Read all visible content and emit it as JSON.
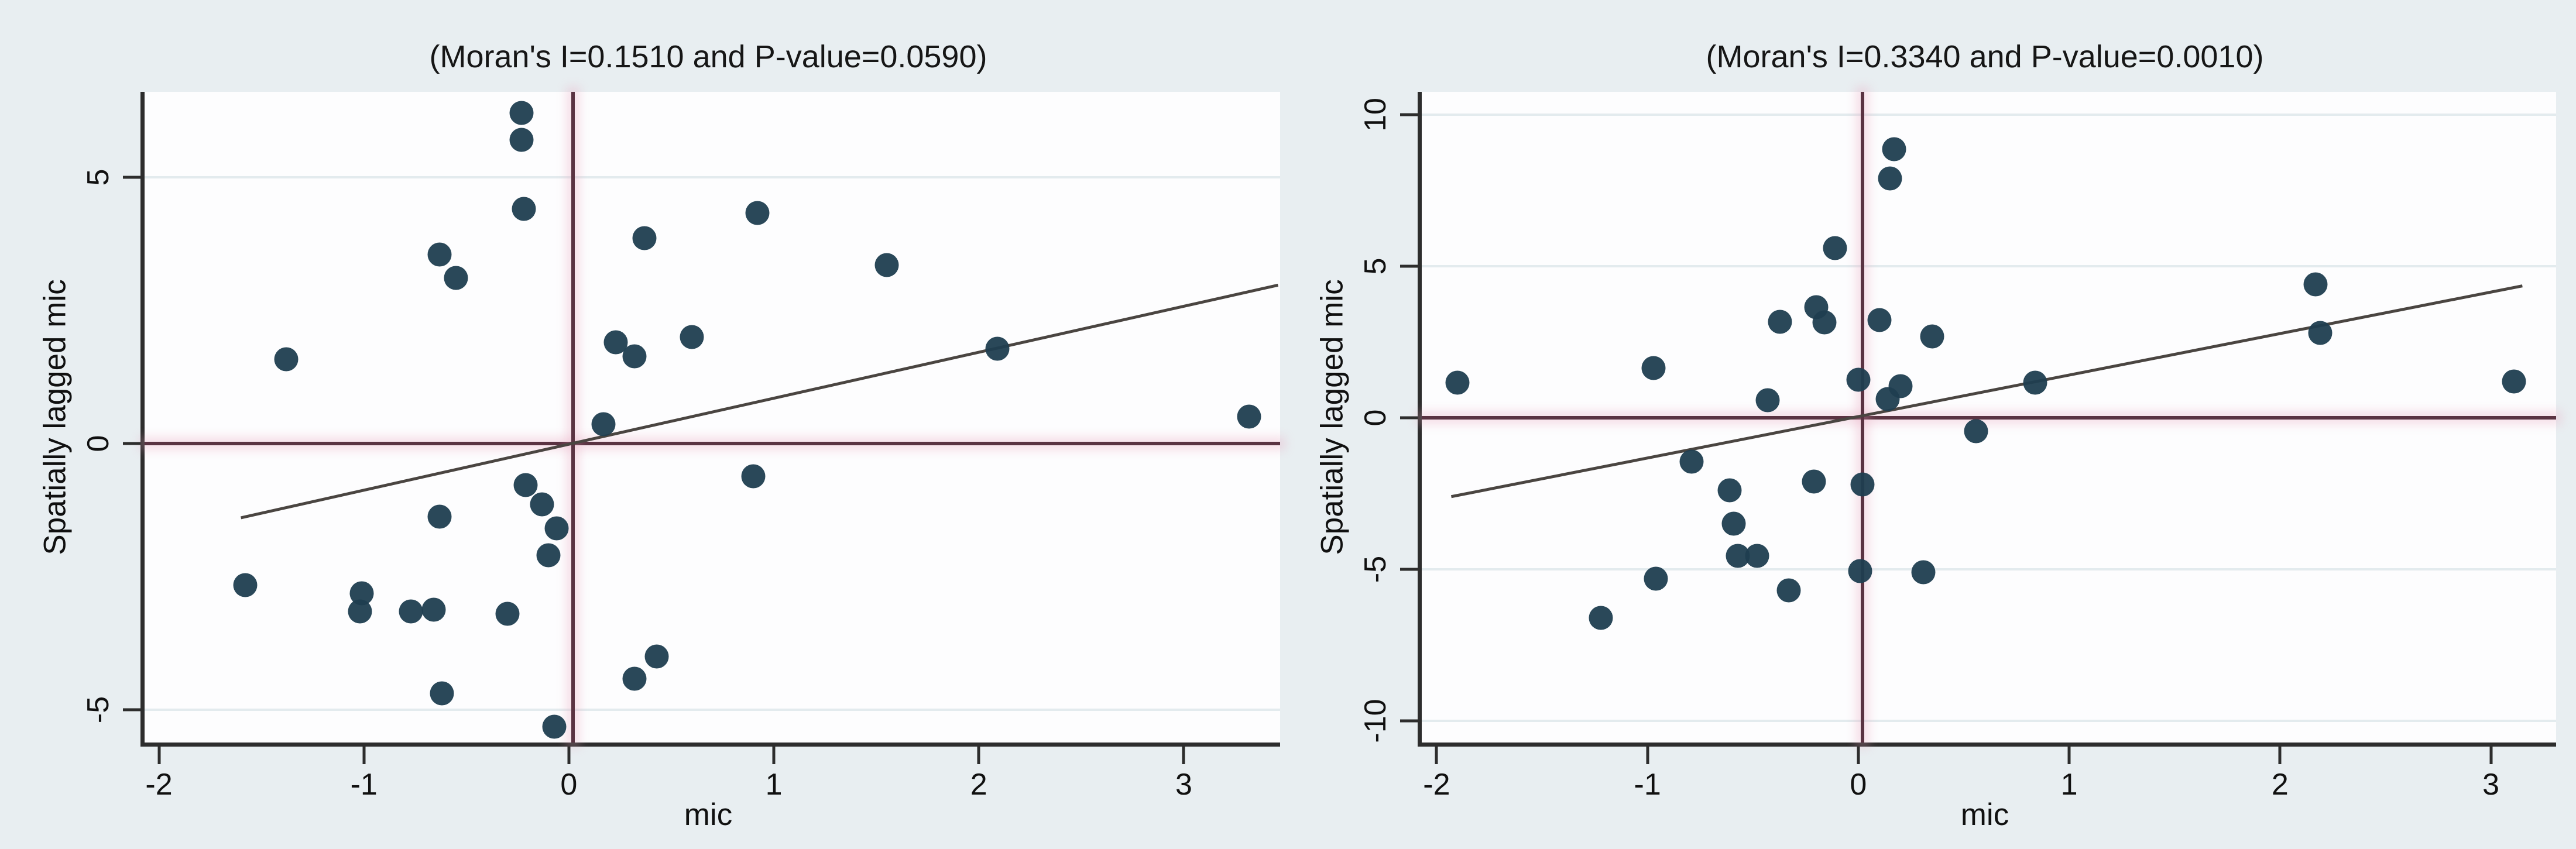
{
  "figure": {
    "description": "Two Moran scatter plots of variable mic with spatially lagged mic",
    "background_color": "#e8eef1"
  },
  "style": {
    "point_color": "#1f3e50",
    "reference_line_color": "#5a3342",
    "fit_line_color": "#4a4541",
    "axis_color": "#2d2d2d",
    "grid_color": "#e3ebee",
    "plot_background": "#fdfdfe",
    "text_color": "#101010"
  },
  "chart_data": [
    {
      "type": "scatter",
      "title": "(Moran's I=0.1510 and P-value=0.0590)",
      "moran_i": "0.1510",
      "p_value": "0.0590",
      "xlabel": "mic",
      "ylabel": "Spatially lagged mic",
      "xlim": [
        -2.09,
        3.45
      ],
      "ylim": [
        -5.62,
        6.6
      ],
      "xticks": [
        -2,
        -1,
        0,
        1,
        2,
        3
      ],
      "yticks": [
        -5,
        0,
        5
      ],
      "grid": "horizontal-only",
      "legend": "none",
      "ref_vline_x": 0,
      "ref_hline_y": 0,
      "fit_line": {
        "x1": -1.62,
        "y1": -1.4,
        "x2": 3.44,
        "y2": 2.97
      },
      "points": [
        [
          -0.25,
          6.2
        ],
        [
          -0.25,
          5.7
        ],
        [
          -0.24,
          4.4
        ],
        [
          -0.65,
          3.55
        ],
        [
          -0.57,
          3.1
        ],
        [
          -1.4,
          1.58
        ],
        [
          0.35,
          3.85
        ],
        [
          0.9,
          4.32
        ],
        [
          1.53,
          3.35
        ],
        [
          0.21,
          1.9
        ],
        [
          0.3,
          1.63
        ],
        [
          0.58,
          2.0
        ],
        [
          2.07,
          1.78
        ],
        [
          3.3,
          0.5
        ],
        [
          0.15,
          0.36
        ],
        [
          0.88,
          -0.62
        ],
        [
          -0.23,
          -0.78
        ],
        [
          -0.15,
          -1.15
        ],
        [
          -0.08,
          -1.6
        ],
        [
          -0.12,
          -2.1
        ],
        [
          -0.65,
          -1.38
        ],
        [
          -1.6,
          -2.66
        ],
        [
          -1.03,
          -2.82
        ],
        [
          -1.04,
          -3.16
        ],
        [
          -0.79,
          -3.16
        ],
        [
          -0.68,
          -3.12
        ],
        [
          -0.32,
          -3.2
        ],
        [
          -0.64,
          -4.7
        ],
        [
          -0.09,
          -5.32
        ],
        [
          0.41,
          -4.0
        ],
        [
          0.3,
          -4.42
        ]
      ]
    },
    {
      "type": "scatter",
      "title": "(Moran's I=0.3340 and P-value=0.0010)",
      "moran_i": "0.3340",
      "p_value": "0.0010",
      "xlabel": "mic",
      "ylabel": "Spatially lagged mic",
      "xlim": [
        -2.09,
        3.29
      ],
      "ylim": [
        -10.71,
        10.75
      ],
      "xticks": [
        -2,
        -1,
        0,
        1,
        2,
        3
      ],
      "yticks": [
        -10,
        -5,
        0,
        5,
        10
      ],
      "grid": "horizontal-only",
      "legend": "none",
      "ref_vline_x": 0,
      "ref_hline_y": 0,
      "fit_line": {
        "x1": -1.95,
        "y1": -2.6,
        "x2": 3.13,
        "y2": 4.35
      },
      "points": [
        [
          0.15,
          8.85
        ],
        [
          0.13,
          7.9
        ],
        [
          -0.13,
          5.6
        ],
        [
          -0.22,
          3.65
        ],
        [
          -0.18,
          3.15
        ],
        [
          -0.39,
          3.17
        ],
        [
          0.08,
          3.22
        ],
        [
          0.33,
          2.68
        ],
        [
          -0.99,
          1.65
        ],
        [
          -1.92,
          1.15
        ],
        [
          -0.02,
          1.25
        ],
        [
          0.18,
          1.05
        ],
        [
          0.12,
          0.62
        ],
        [
          -0.45,
          0.58
        ],
        [
          0.82,
          1.15
        ],
        [
          2.15,
          4.4
        ],
        [
          2.17,
          2.8
        ],
        [
          3.09,
          1.2
        ],
        [
          0.54,
          -0.45
        ],
        [
          -0.81,
          -1.45
        ],
        [
          -0.63,
          -2.4
        ],
        [
          -0.23,
          -2.1
        ],
        [
          0.0,
          -2.2
        ],
        [
          -0.61,
          -3.5
        ],
        [
          -0.59,
          -4.55
        ],
        [
          -0.5,
          -4.55
        ],
        [
          -0.98,
          -5.3
        ],
        [
          -0.35,
          -5.7
        ],
        [
          -1.24,
          -6.6
        ],
        [
          -0.01,
          -5.05
        ],
        [
          0.29,
          -5.1
        ]
      ]
    }
  ]
}
